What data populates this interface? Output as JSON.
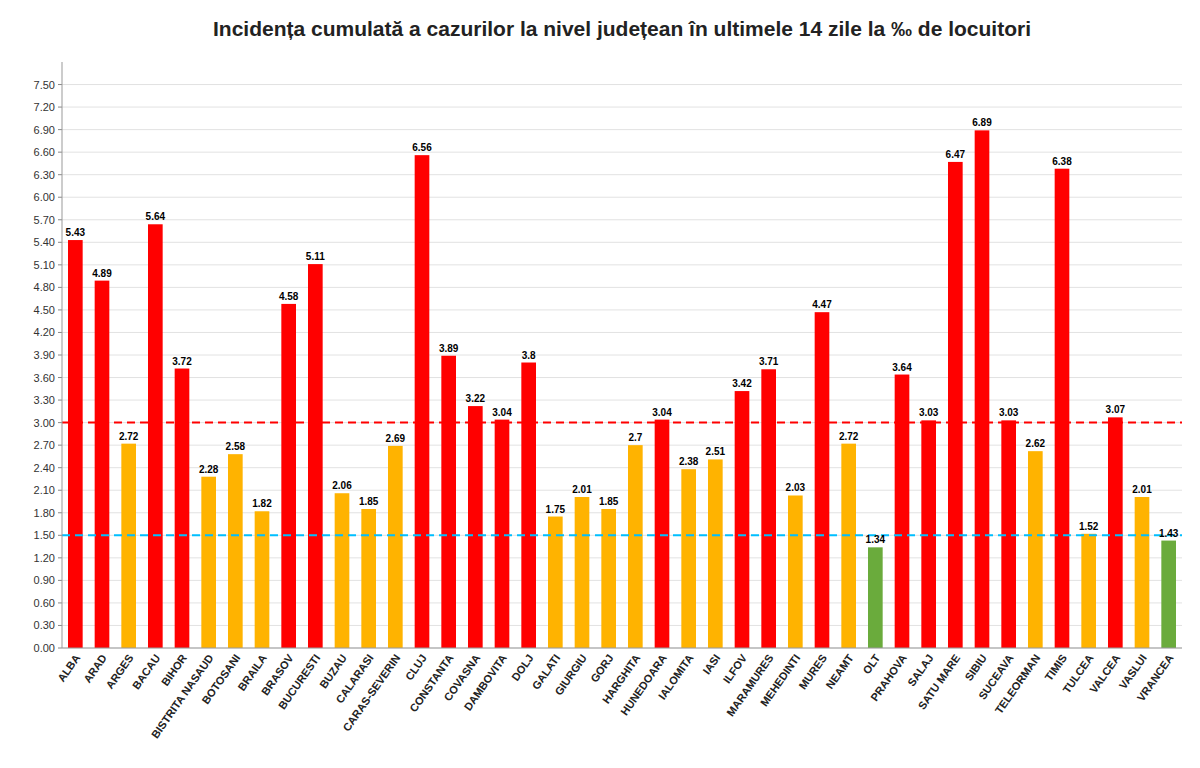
{
  "chart_data": {
    "type": "bar",
    "title": "Incidența cumulată a cazurilor la nivel județean în ultimele 14 zile la ‰ de locuitori",
    "categories": [
      "ALBA",
      "ARAD",
      "ARGES",
      "BACAU",
      "BIHOR",
      "BISTRITA NASAUD",
      "BOTOSANI",
      "BRAILA",
      "BRASOV",
      "BUCURESTI",
      "BUZAU",
      "CALARASI",
      "CARAS-SEVERIN",
      "CLUJ",
      "CONSTANTA",
      "COVASNA",
      "DAMBOVITA",
      "DOLJ",
      "GALATI",
      "GIURGIU",
      "GORJ",
      "HARGHITA",
      "HUNEDOARA",
      "IALOMITA",
      "IASI",
      "ILFOV",
      "MARAMURES",
      "MEHEDINTI",
      "MURES",
      "NEAMT",
      "OLT",
      "PRAHOVA",
      "SALAJ",
      "SATU MARE",
      "SIBIU",
      "SUCEAVA",
      "TELEORMAN",
      "TIMIS",
      "TULCEA",
      "VALCEA",
      "VASLUI",
      "VRANCEA"
    ],
    "values": [
      5.43,
      4.89,
      2.72,
      5.64,
      3.72,
      2.28,
      2.58,
      1.82,
      4.58,
      5.11,
      2.06,
      1.85,
      2.69,
      6.56,
      3.89,
      3.22,
      3.04,
      3.8,
      1.75,
      2.01,
      1.85,
      2.7,
      3.04,
      2.38,
      2.51,
      3.42,
      3.71,
      2.03,
      4.47,
      2.72,
      1.34,
      3.64,
      3.03,
      6.47,
      6.89,
      3.03,
      2.62,
      6.38,
      1.52,
      3.07,
      2.01,
      1.43
    ],
    "colors": [
      "#FF0000",
      "#FF0000",
      "#FFB300",
      "#FF0000",
      "#FF0000",
      "#FFB300",
      "#FFB300",
      "#FFB300",
      "#FF0000",
      "#FF0000",
      "#FFB300",
      "#FFB300",
      "#FFB300",
      "#FF0000",
      "#FF0000",
      "#FF0000",
      "#FF0000",
      "#FF0000",
      "#FFB300",
      "#FFB300",
      "#FFB300",
      "#FFB300",
      "#FF0000",
      "#FFB300",
      "#FFB300",
      "#FF0000",
      "#FF0000",
      "#FFB300",
      "#FF0000",
      "#FFB300",
      "#6AAB3C",
      "#FF0000",
      "#FF0000",
      "#FF0000",
      "#FF0000",
      "#FF0000",
      "#FFB300",
      "#FF0000",
      "#FFB300",
      "#FF0000",
      "#FFB300",
      "#6AAB3C"
    ],
    "reference_lines": [
      {
        "value": 3.0,
        "color": "#FF0000",
        "line_style": "dashed"
      },
      {
        "value": 1.5,
        "color": "#00BFFF",
        "line_style": "dashed"
      }
    ],
    "ylim": [
      0.0,
      7.8
    ],
    "yticks": [
      {
        "value": 0.0,
        "label": "0.00"
      },
      {
        "value": 0.3,
        "label": "0.30"
      },
      {
        "value": 0.6,
        "label": "0.60"
      },
      {
        "value": 0.9,
        "label": "0.90"
      },
      {
        "value": 1.2,
        "label": "1.20"
      },
      {
        "value": 1.5,
        "label": "1.50"
      },
      {
        "value": 1.8,
        "label": "1.80"
      },
      {
        "value": 2.1,
        "label": "2.10"
      },
      {
        "value": 2.4,
        "label": "2.40"
      },
      {
        "value": 2.7,
        "label": "2.70"
      },
      {
        "value": 3.0,
        "label": "3.00"
      },
      {
        "value": 3.3,
        "label": "3.30"
      },
      {
        "value": 3.6,
        "label": "3.60"
      },
      {
        "value": 3.9,
        "label": "3.90"
      },
      {
        "value": 4.2,
        "label": "4.20"
      },
      {
        "value": 4.5,
        "label": "4.50"
      },
      {
        "value": 4.8,
        "label": "4.80"
      },
      {
        "value": 5.1,
        "label": "5.10"
      },
      {
        "value": 5.4,
        "label": "5.40"
      },
      {
        "value": 5.7,
        "label": "5.70"
      },
      {
        "value": 6.0,
        "label": "6.00"
      },
      {
        "value": 6.3,
        "label": "6.30"
      },
      {
        "value": 6.6,
        "label": "6.60"
      },
      {
        "value": 6.9,
        "label": "6.90"
      },
      {
        "value": 7.2,
        "label": "7.20"
      },
      {
        "value": 7.5,
        "label": "7.50"
      }
    ],
    "grid": true,
    "data_labels": true
  }
}
